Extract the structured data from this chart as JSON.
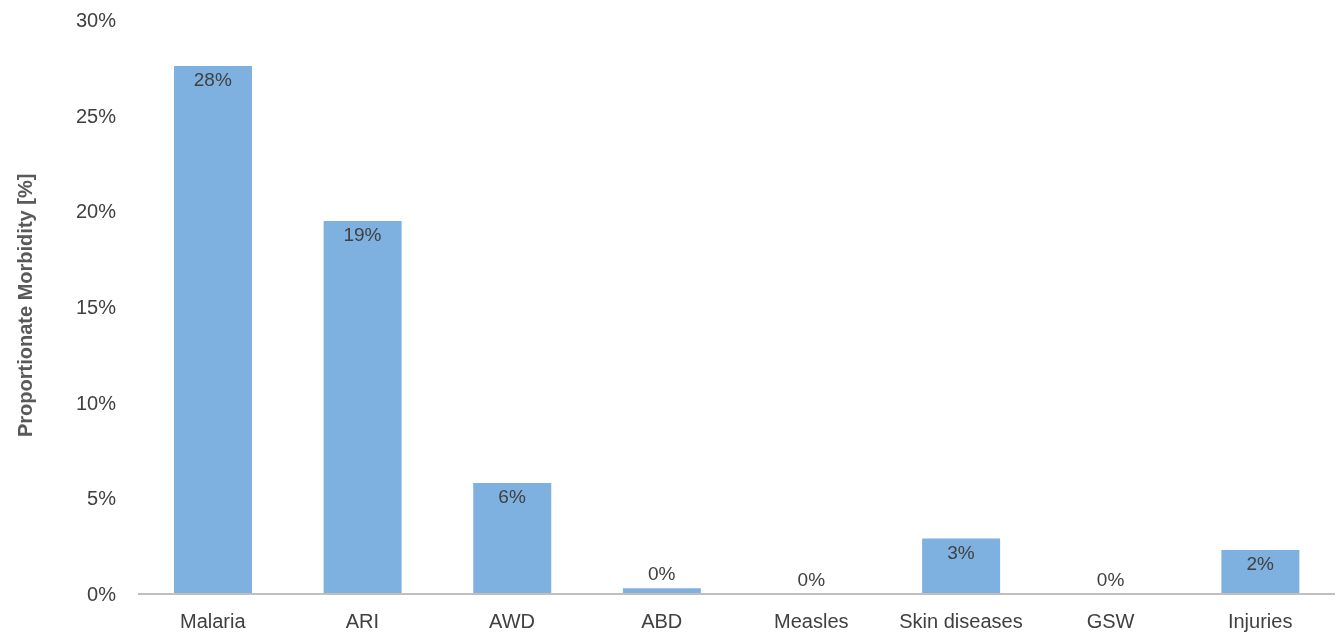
{
  "chart_data": {
    "type": "bar",
    "ylabel": "Proportionate Morbidity [%]",
    "categories": [
      "Malaria",
      "ARI",
      "AWD",
      "ABD",
      "Measles",
      "Skin diseases",
      "GSW",
      "Injuries"
    ],
    "values": [
      27.6,
      19.5,
      5.8,
      0.3,
      0,
      2.9,
      0,
      2.3
    ],
    "value_labels": [
      "28%",
      "19%",
      "6%",
      "0%",
      "0%",
      "3%",
      "0%",
      "2%"
    ],
    "color": "#7eb1e0",
    "ylim": [
      0,
      30
    ],
    "yticks": [
      {
        "value": 0,
        "label": "0%"
      },
      {
        "value": 5,
        "label": "5%"
      },
      {
        "value": 10,
        "label": "10%"
      },
      {
        "value": 15,
        "label": "15%"
      },
      {
        "value": 20,
        "label": "20%"
      },
      {
        "value": 25,
        "label": "25%"
      },
      {
        "value": 30,
        "label": "30%"
      }
    ],
    "grid": false,
    "legend": false
  }
}
